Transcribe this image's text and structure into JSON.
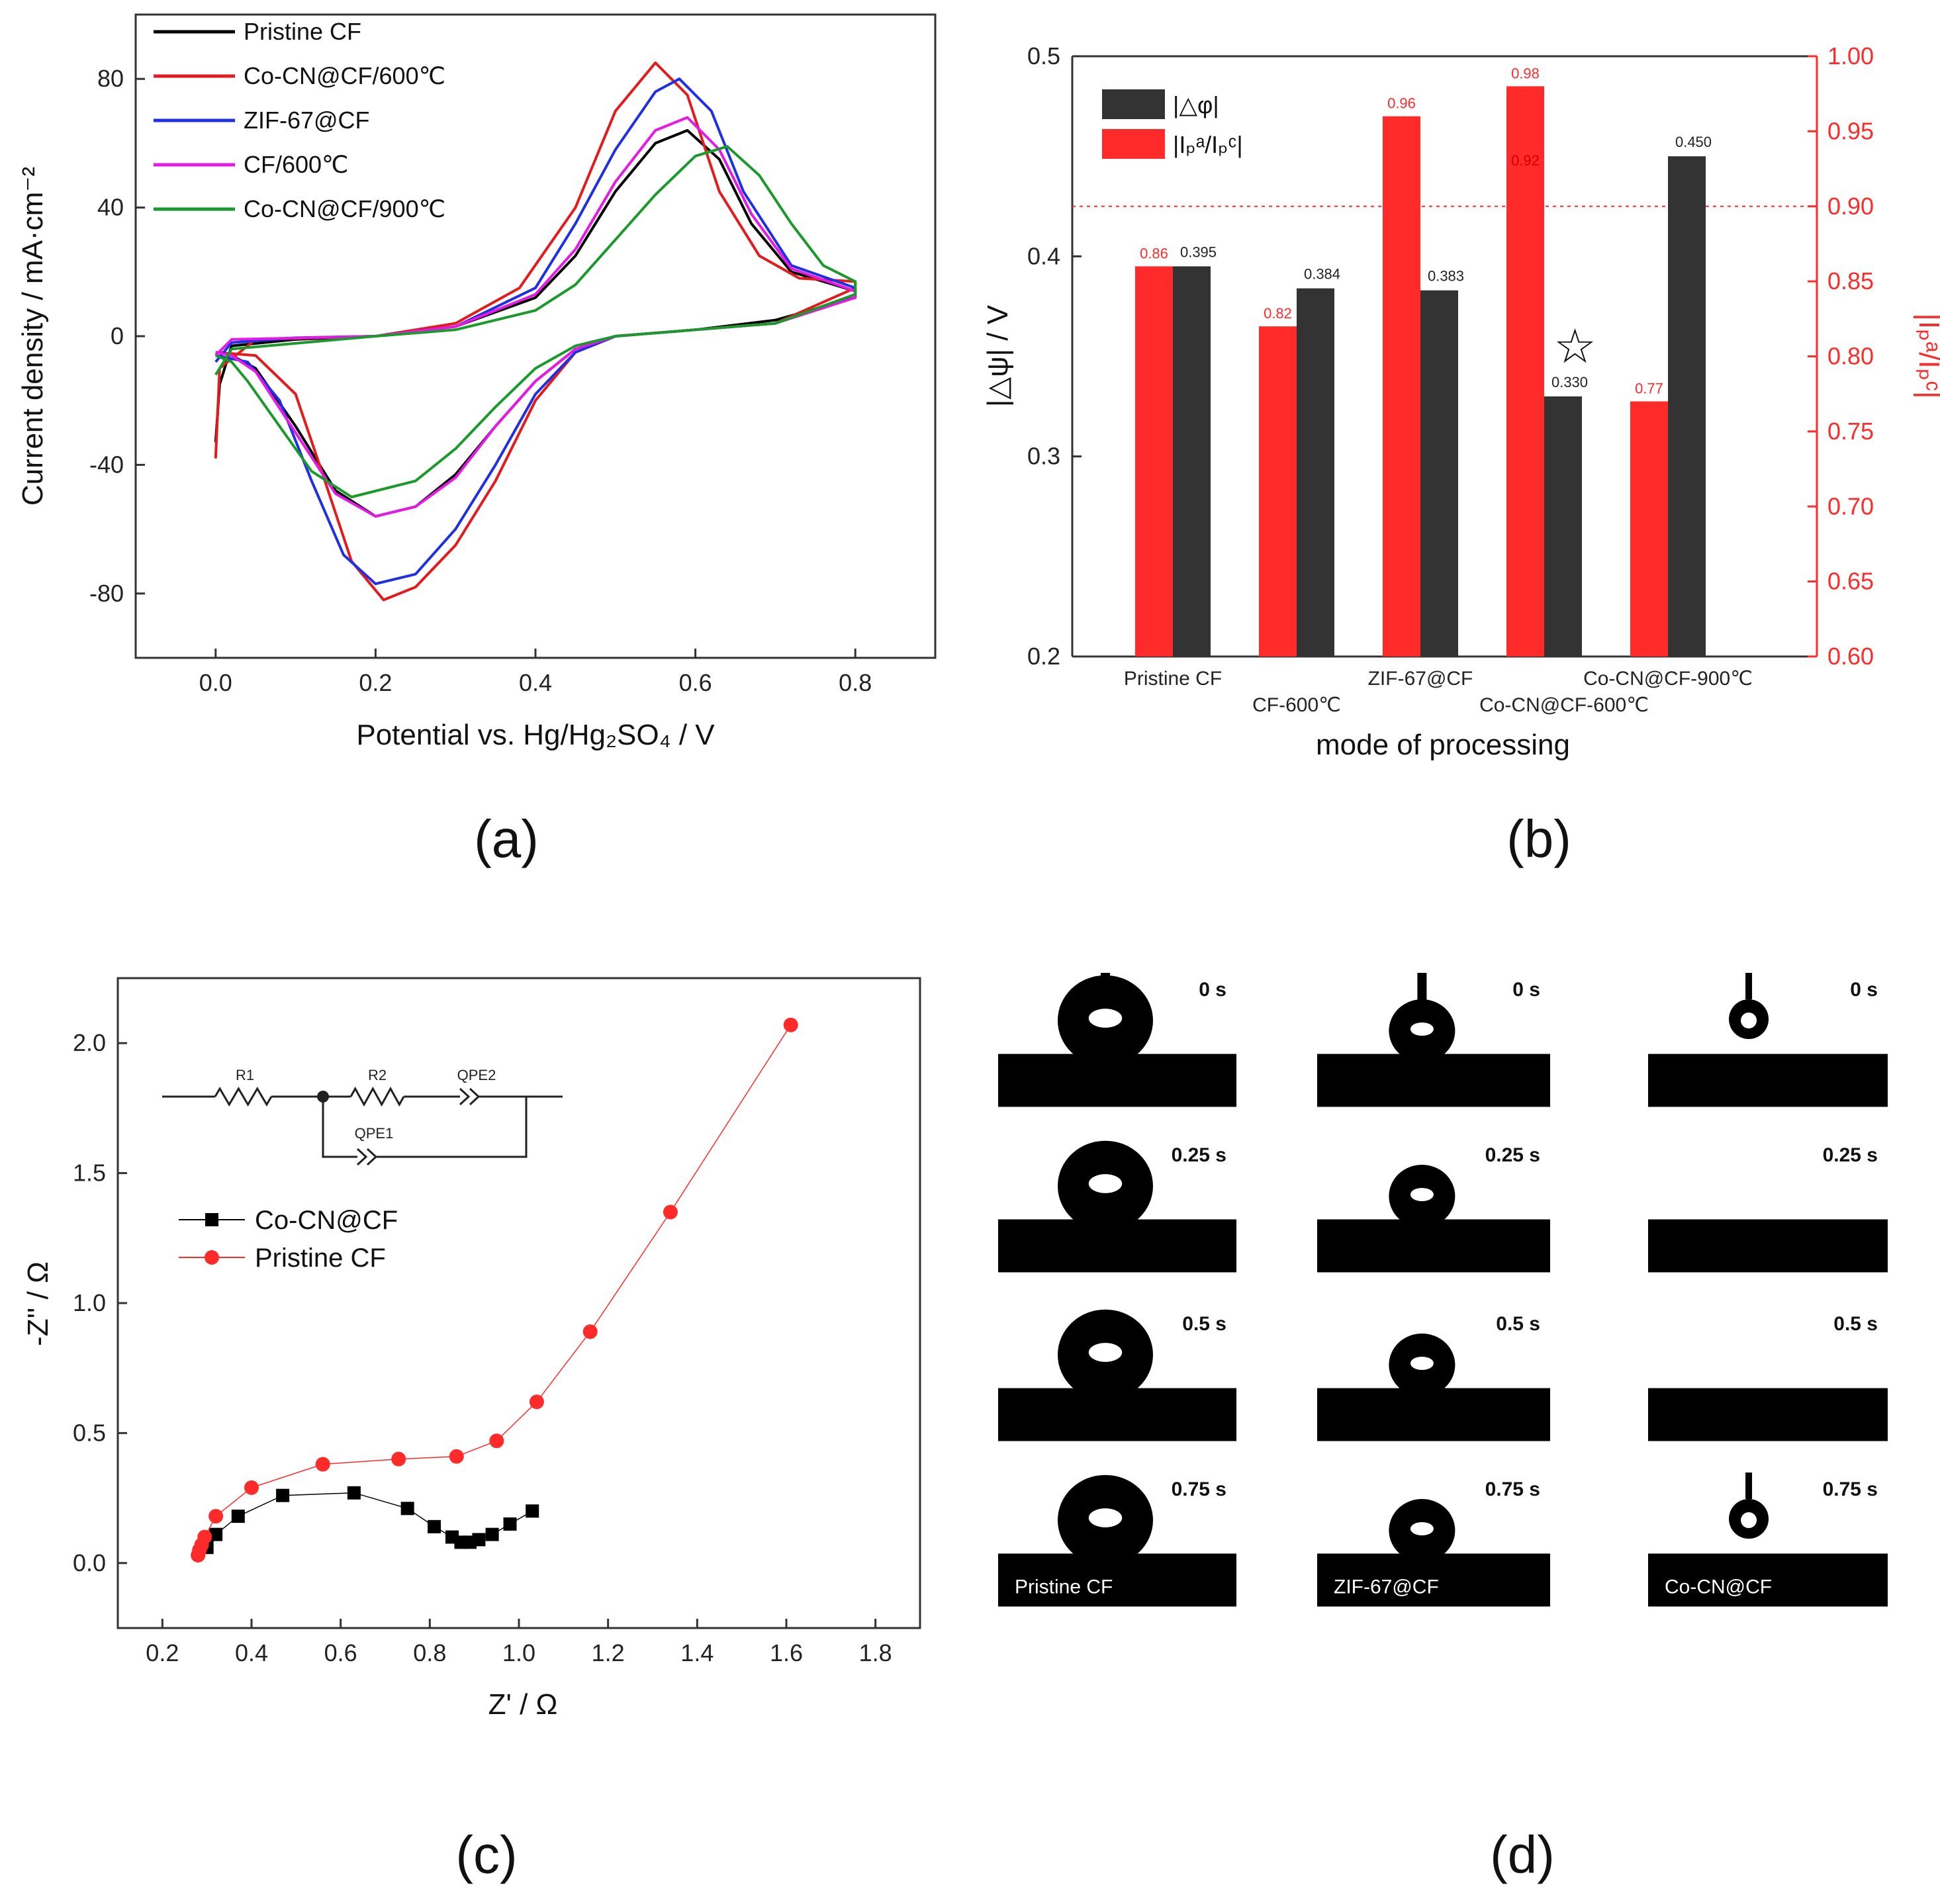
{
  "chart_data": [
    {
      "panel": "(a)",
      "type": "line",
      "xlabel": "Potential vs. Hg/Hg₂SO₄ / V",
      "ylabel": "Current density / mA·cm⁻²",
      "xlim": [
        -0.1,
        0.9
      ],
      "ylim": [
        -100,
        100
      ],
      "xticks": [
        "0.0",
        "0.2",
        "0.4",
        "0.6",
        "0.8"
      ],
      "yticks": [
        "-80",
        "-40",
        "0",
        "40",
        "80"
      ],
      "grid": false,
      "legend_position": "top-left",
      "series": [
        {
          "name": "Pristine CF",
          "color": "#000000",
          "forward": [
            [
              0.0,
              -33
            ],
            [
              0.005,
              -15
            ],
            [
              0.02,
              -3
            ],
            [
              0.1,
              -1
            ],
            [
              0.2,
              0
            ],
            [
              0.3,
              3
            ],
            [
              0.4,
              12
            ],
            [
              0.45,
              25
            ],
            [
              0.5,
              45
            ],
            [
              0.55,
              60
            ],
            [
              0.59,
              64
            ],
            [
              0.63,
              55
            ],
            [
              0.67,
              35
            ],
            [
              0.72,
              20
            ],
            [
              0.8,
              14
            ]
          ],
          "reverse": [
            [
              0.8,
              12
            ],
            [
              0.7,
              5
            ],
            [
              0.6,
              2
            ],
            [
              0.5,
              0
            ],
            [
              0.45,
              -4
            ],
            [
              0.4,
              -14
            ],
            [
              0.35,
              -28
            ],
            [
              0.3,
              -43
            ],
            [
              0.25,
              -53
            ],
            [
              0.2,
              -56
            ],
            [
              0.15,
              -48
            ],
            [
              0.1,
              -28
            ],
            [
              0.05,
              -10
            ],
            [
              0.02,
              -6
            ],
            [
              0.0,
              -5
            ]
          ]
        },
        {
          "name": "Co-CN@CF/600℃",
          "color": "#e41a1c",
          "forward": [
            [
              0.0,
              -38
            ],
            [
              0.005,
              -10
            ],
            [
              0.05,
              -1
            ],
            [
              0.2,
              0
            ],
            [
              0.3,
              4
            ],
            [
              0.38,
              15
            ],
            [
              0.45,
              40
            ],
            [
              0.5,
              70
            ],
            [
              0.55,
              85
            ],
            [
              0.59,
              75
            ],
            [
              0.63,
              45
            ],
            [
              0.68,
              25
            ],
            [
              0.73,
              18
            ],
            [
              0.8,
              17
            ]
          ],
          "reverse": [
            [
              0.8,
              15
            ],
            [
              0.7,
              4
            ],
            [
              0.6,
              2
            ],
            [
              0.5,
              0
            ],
            [
              0.45,
              -5
            ],
            [
              0.4,
              -20
            ],
            [
              0.35,
              -45
            ],
            [
              0.3,
              -65
            ],
            [
              0.25,
              -78
            ],
            [
              0.21,
              -82
            ],
            [
              0.17,
              -70
            ],
            [
              0.13,
              -40
            ],
            [
              0.1,
              -18
            ],
            [
              0.05,
              -6
            ],
            [
              0.0,
              -5
            ]
          ]
        },
        {
          "name": "ZIF-67@CF",
          "color": "#1f2fe6",
          "forward": [
            [
              0.0,
              -8
            ],
            [
              0.02,
              -2
            ],
            [
              0.1,
              -0.5
            ],
            [
              0.2,
              0
            ],
            [
              0.3,
              3
            ],
            [
              0.4,
              15
            ],
            [
              0.45,
              35
            ],
            [
              0.5,
              58
            ],
            [
              0.55,
              76
            ],
            [
              0.58,
              80
            ],
            [
              0.62,
              70
            ],
            [
              0.66,
              45
            ],
            [
              0.72,
              22
            ],
            [
              0.8,
              15
            ]
          ],
          "reverse": [
            [
              0.8,
              13
            ],
            [
              0.7,
              4
            ],
            [
              0.6,
              2
            ],
            [
              0.5,
              0
            ],
            [
              0.45,
              -5
            ],
            [
              0.4,
              -18
            ],
            [
              0.35,
              -40
            ],
            [
              0.3,
              -60
            ],
            [
              0.25,
              -74
            ],
            [
              0.2,
              -77
            ],
            [
              0.16,
              -68
            ],
            [
              0.12,
              -45
            ],
            [
              0.08,
              -20
            ],
            [
              0.04,
              -8
            ],
            [
              0.0,
              -6
            ]
          ]
        },
        {
          "name": "CF/600℃",
          "color": "#e619e6",
          "forward": [
            [
              0.0,
              -6
            ],
            [
              0.02,
              -1
            ],
            [
              0.2,
              0
            ],
            [
              0.3,
              3
            ],
            [
              0.4,
              13
            ],
            [
              0.45,
              27
            ],
            [
              0.5,
              48
            ],
            [
              0.55,
              64
            ],
            [
              0.59,
              68
            ],
            [
              0.63,
              58
            ],
            [
              0.67,
              38
            ],
            [
              0.72,
              21
            ],
            [
              0.8,
              14
            ]
          ],
          "reverse": [
            [
              0.8,
              12
            ],
            [
              0.7,
              4
            ],
            [
              0.6,
              2
            ],
            [
              0.5,
              0
            ],
            [
              0.45,
              -4
            ],
            [
              0.4,
              -14
            ],
            [
              0.35,
              -28
            ],
            [
              0.3,
              -44
            ],
            [
              0.25,
              -53
            ],
            [
              0.2,
              -56
            ],
            [
              0.15,
              -49
            ],
            [
              0.1,
              -30
            ],
            [
              0.05,
              -11
            ],
            [
              0.02,
              -6
            ],
            [
              0.0,
              -5
            ]
          ]
        },
        {
          "name": "Co-CN@CF/900℃",
          "color": "#1a9a2a",
          "forward": [
            [
              0.0,
              -12
            ],
            [
              0.02,
              -4
            ],
            [
              0.2,
              0
            ],
            [
              0.3,
              2
            ],
            [
              0.4,
              8
            ],
            [
              0.45,
              16
            ],
            [
              0.5,
              30
            ],
            [
              0.55,
              44
            ],
            [
              0.6,
              56
            ],
            [
              0.64,
              59
            ],
            [
              0.68,
              50
            ],
            [
              0.72,
              35
            ],
            [
              0.76,
              22
            ],
            [
              0.8,
              17
            ]
          ],
          "reverse": [
            [
              0.8,
              13
            ],
            [
              0.7,
              4
            ],
            [
              0.6,
              2
            ],
            [
              0.5,
              0
            ],
            [
              0.45,
              -3
            ],
            [
              0.4,
              -10
            ],
            [
              0.35,
              -22
            ],
            [
              0.3,
              -35
            ],
            [
              0.25,
              -45
            ],
            [
              0.17,
              -50
            ],
            [
              0.12,
              -42
            ],
            [
              0.08,
              -28
            ],
            [
              0.04,
              -14
            ],
            [
              0.02,
              -8
            ],
            [
              0.0,
              -6
            ]
          ]
        }
      ]
    },
    {
      "panel": "(b)",
      "type": "bar",
      "xlabel": "mode of processing",
      "ylabel_left": "|△ψ| / V",
      "ylabel_right": "|Iₚᵃ/Iₚᶜ|",
      "categories": [
        "Pristine CF",
        "CF-600℃",
        "ZIF-67@CF",
        "Co-CN@CF-600℃",
        "Co-CN@CF-900℃"
      ],
      "ylim_left": [
        0.2,
        0.5
      ],
      "ylim_right": [
        0.6,
        1.0
      ],
      "yticks_left": [
        "0.2",
        "0.3",
        "0.4",
        "0.5"
      ],
      "yticks_right": [
        "0.60",
        "0.65",
        "0.70",
        "0.75",
        "0.80",
        "0.85",
        "0.90",
        "0.95",
        "1.00"
      ],
      "reference_line_right": 0.9,
      "ref_label": "0.92",
      "best_marker": "☆",
      "legend_position": "top-left",
      "series": [
        {
          "name": "|△φ|",
          "axis": "left",
          "color": "#333333",
          "values": [
            0.395,
            0.384,
            0.383,
            0.33,
            0.45
          ],
          "labels": [
            "0.395",
            "0.384",
            "0.383",
            "0.330",
            "0.450"
          ]
        },
        {
          "name": "|Iₚᵃ/Iₚᶜ|",
          "axis": "right",
          "color": "#ff2a2a",
          "values": [
            0.86,
            0.82,
            0.96,
            0.98,
            0.77
          ],
          "labels": [
            "0.86",
            "0.82",
            "0.96",
            "0.98",
            "0.77"
          ]
        }
      ],
      "right_axis_color": "#ff2a2a"
    },
    {
      "panel": "(c)",
      "type": "scatter",
      "xlabel": "Z' / Ω",
      "ylabel": "-Z'' / Ω",
      "xlim": [
        0.1,
        1.9
      ],
      "ylim": [
        -0.25,
        2.25
      ],
      "xticks": [
        "0.2",
        "0.4",
        "0.6",
        "0.8",
        "1.0",
        "1.2",
        "1.4",
        "1.6",
        "1.8"
      ],
      "yticks": [
        "0.0",
        "0.5",
        "1.0",
        "1.5",
        "2.0"
      ],
      "legend_position": "upper-left",
      "circuit_labels": {
        "r1": "R1",
        "r2": "R2",
        "qpe2": "QPE2",
        "qpe1": "QPE1"
      },
      "series": [
        {
          "name": "Co-CN@CF",
          "color": "#000000",
          "marker": "square",
          "x": [
            0.3,
            0.32,
            0.37,
            0.47,
            0.63,
            0.75,
            0.81,
            0.85,
            0.87,
            0.89,
            0.91,
            0.94,
            0.98,
            1.03
          ],
          "y": [
            0.06,
            0.11,
            0.18,
            0.26,
            0.27,
            0.21,
            0.14,
            0.1,
            0.08,
            0.08,
            0.09,
            0.11,
            0.15,
            0.2
          ]
        },
        {
          "name": "Pristine CF",
          "color": "#ff2a2a",
          "marker": "circle",
          "x": [
            0.28,
            0.283,
            0.288,
            0.295,
            0.32,
            0.4,
            0.56,
            0.73,
            0.86,
            0.95,
            1.04,
            1.16,
            1.34,
            1.61
          ],
          "y": [
            0.03,
            0.05,
            0.07,
            0.1,
            0.18,
            0.29,
            0.38,
            0.4,
            0.41,
            0.47,
            0.62,
            0.89,
            1.35,
            2.07
          ]
        }
      ]
    }
  ],
  "panel_d": {
    "label": "(d)",
    "samples": [
      "Pristine CF",
      "ZIF-67@CF",
      "Co-CN@CF"
    ],
    "times": [
      "0 s",
      "0.25 s",
      "0.5 s",
      "0.75 s"
    ]
  }
}
